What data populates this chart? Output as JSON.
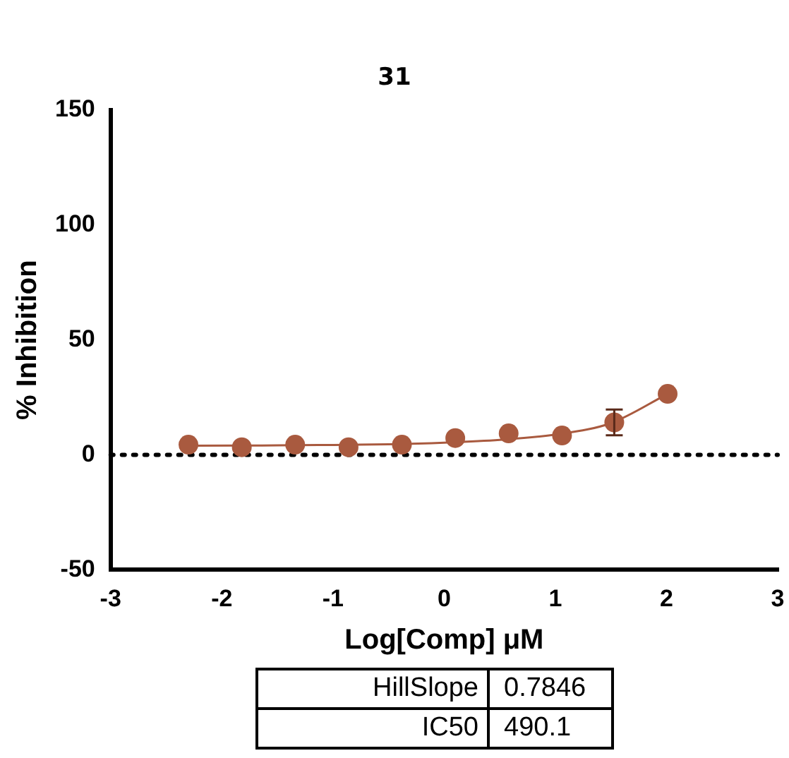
{
  "chart_data": {
    "type": "scatter",
    "title": "31",
    "xlabel": "Log[Comp] μM",
    "ylabel": "% Inhibition",
    "xlim": [
      -3,
      3
    ],
    "xticks": [
      -3,
      -2,
      -1,
      0,
      1,
      2,
      3
    ],
    "ylim": [
      -50,
      150
    ],
    "yticks": [
      -50,
      0,
      50,
      100,
      150
    ],
    "grid": false,
    "legend": false,
    "series": [
      {
        "marker": "circle",
        "color": "#a95a3f",
        "x": [
          -2.3,
          -1.82,
          -1.34,
          -0.86,
          -0.38,
          0.1,
          0.58,
          1.06,
          1.53,
          2.01
        ],
        "values": [
          4.4,
          3.3,
          4.4,
          3.3,
          4.4,
          7.3,
          9.3,
          8.4,
          14.1,
          26.5
        ],
        "errors": [
          null,
          null,
          null,
          null,
          null,
          null,
          null,
          null,
          5.6,
          null
        ]
      },
      {
        "type": "line",
        "marker": "none",
        "color": "#a95a3f",
        "x": [
          -2.3,
          -1.5,
          -1,
          -0.5,
          0,
          0.5,
          1,
          1.5,
          2.01
        ],
        "values": [
          4,
          4.1,
          4.3,
          4.6,
          5.3,
          6.5,
          8.8,
          13.8,
          26.5
        ]
      }
    ],
    "ref_lines": [
      {
        "axis": "y",
        "value": 0,
        "line_style": "dotted",
        "color": "#000000"
      }
    ],
    "annotations": [
      "HillSlope",
      "0.7846",
      "IC50",
      "490.1"
    ]
  }
}
